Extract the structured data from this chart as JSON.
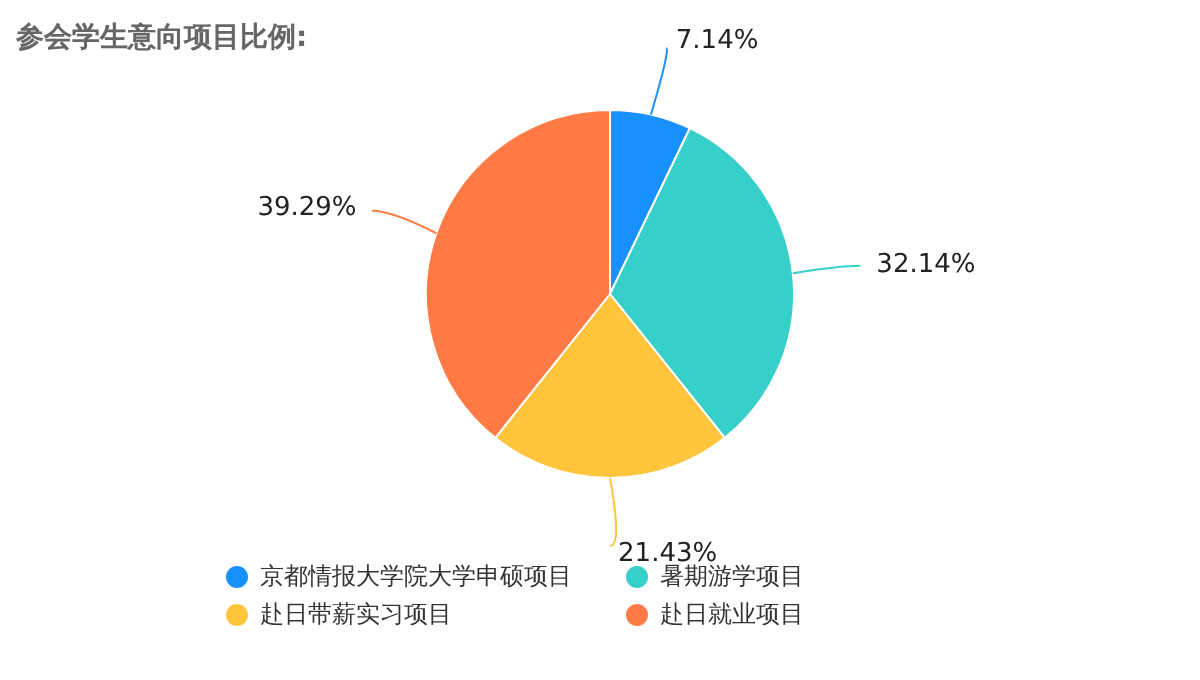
{
  "chart_data": {
    "type": "pie",
    "title": "参会学生意向项目比例:",
    "categories": [
      "京都情报大学院大学申硕项目",
      "暑期游学项目",
      "赴日带薪实习项目",
      "赴日就业项目"
    ],
    "values": [
      7.14,
      32.14,
      21.43,
      39.29
    ],
    "colors": [
      "#1890ff",
      "#36cfc9",
      "#ffc53d",
      "#ff7a45"
    ],
    "value_labels": [
      "7.14%",
      "32.14%",
      "21.43%",
      "39.29%"
    ],
    "legend": "bottom"
  }
}
